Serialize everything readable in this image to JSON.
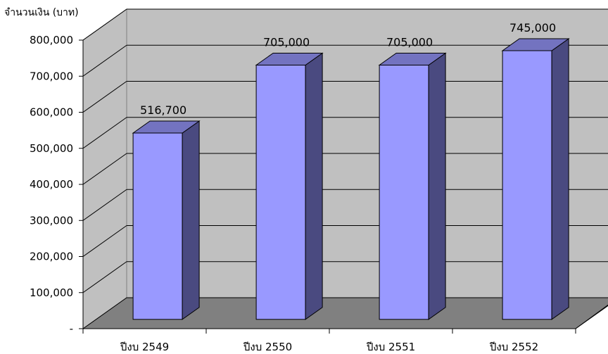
{
  "chart_data": {
    "type": "bar",
    "style": "3d-column",
    "title": "",
    "ylabel": "จำนวนเงิน (บาท)",
    "xlabel": "",
    "categories": [
      "ปีงบ 2549",
      "ปีงบ 2550",
      "ปีงบ 2551",
      "ปีงบ 2552"
    ],
    "values": [
      516700,
      705000,
      705000,
      745000
    ],
    "data_labels": [
      "516,700",
      "705,000",
      "705,000",
      "745,000"
    ],
    "ylim": [
      0,
      800000
    ],
    "yticks": [
      0,
      100000,
      200000,
      300000,
      400000,
      500000,
      600000,
      700000,
      800000
    ],
    "ytick_labels": [
      "-",
      "100,000",
      "200,000",
      "300,000",
      "400,000",
      "500,000",
      "600,000",
      "700,000",
      "800,000"
    ],
    "grid": true,
    "legend": "none",
    "colors": {
      "bar_front": "#9999ff",
      "bar_side": "#4a4a80",
      "bar_top": "#7373c0",
      "wall": "#c0c0c0",
      "floor": "#808080",
      "grid": "#000000"
    }
  }
}
